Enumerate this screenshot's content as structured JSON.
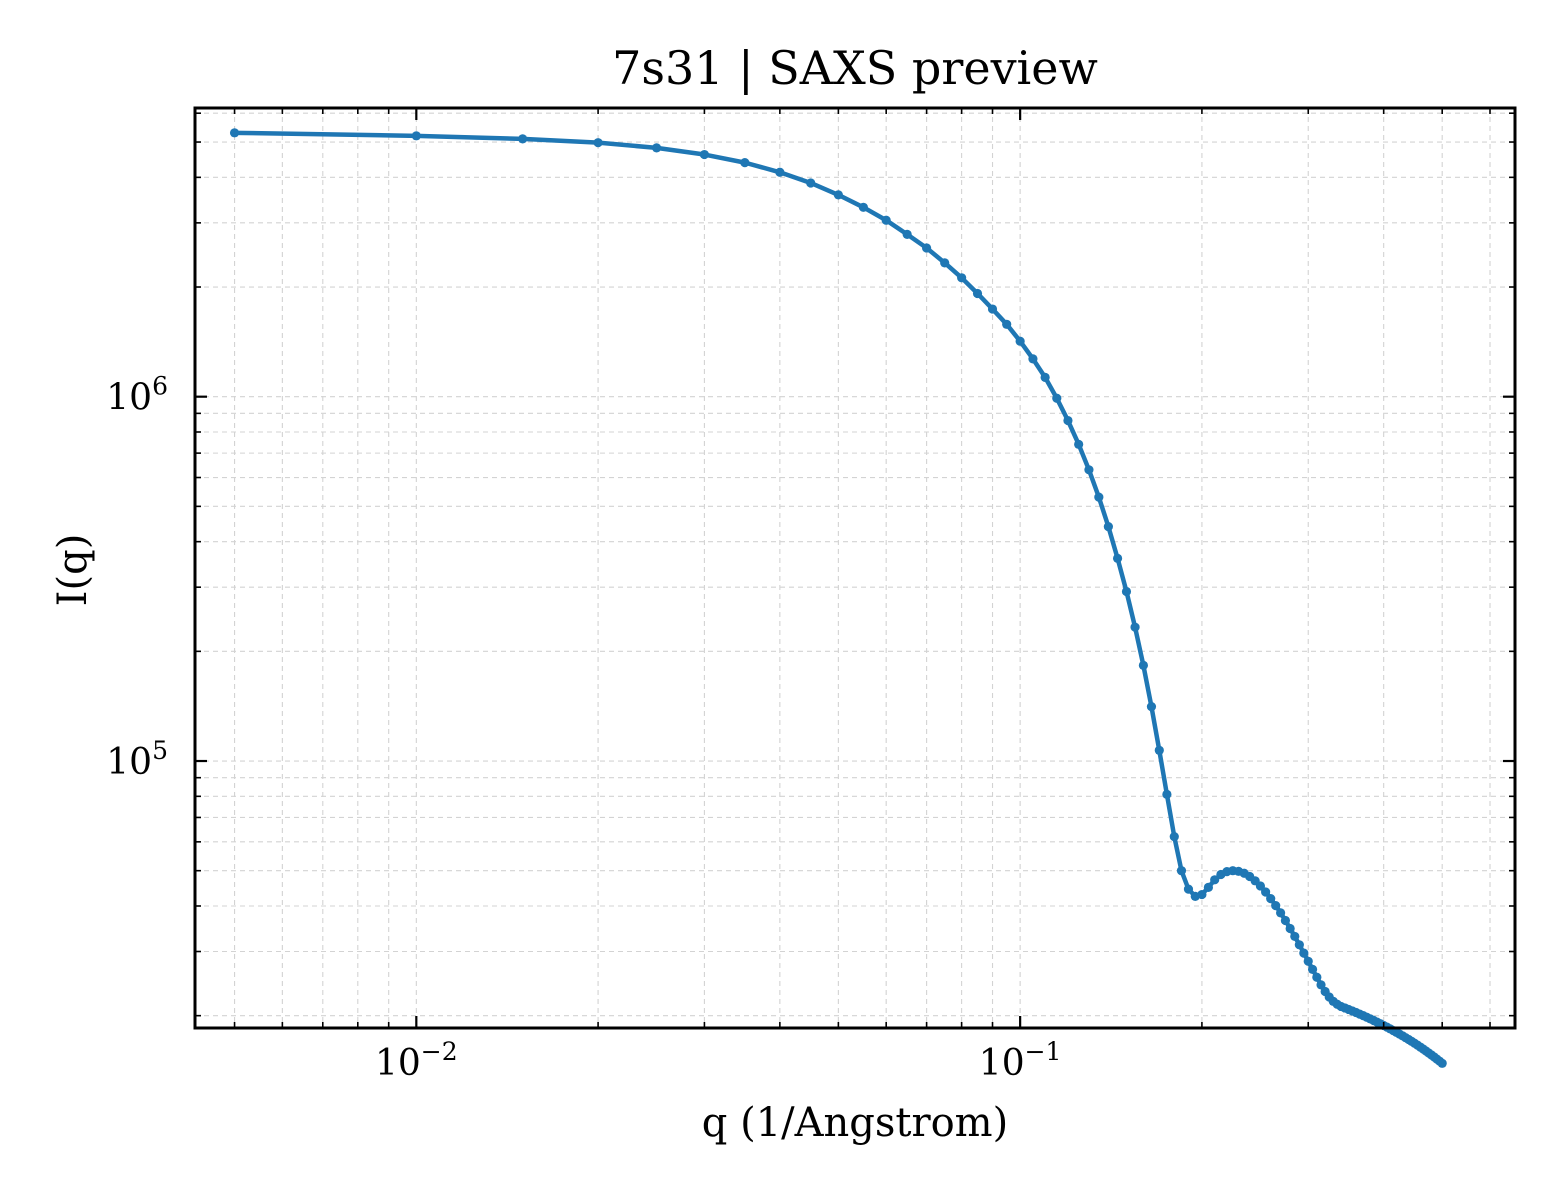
{
  "chart_data": {
    "type": "line",
    "title": "7s31 | SAXS preview",
    "xlabel": "q (1/Angstrom)",
    "ylabel": "I(q)",
    "xscale": "log",
    "yscale": "log",
    "xlim": [
      0.0043,
      0.66
    ],
    "ylim": [
      18500,
      6200000
    ],
    "grid": true,
    "legend": "none",
    "x_ticks": [
      {
        "value": 0.01,
        "base": "10",
        "exp": "−2"
      },
      {
        "value": 0.1,
        "base": "10",
        "exp": "−1"
      }
    ],
    "y_ticks": [
      {
        "value": 100000,
        "base": "10",
        "exp": "5"
      },
      {
        "value": 1000000,
        "base": "10",
        "exp": "6"
      }
    ],
    "series": [
      {
        "color": "#1f77b4",
        "marker": "circle",
        "x": [
          0.005,
          0.01,
          0.015,
          0.02,
          0.025,
          0.03,
          0.035,
          0.04,
          0.045,
          0.05,
          0.055,
          0.06,
          0.065,
          0.07,
          0.075,
          0.08,
          0.085,
          0.09,
          0.095,
          0.1,
          0.105,
          0.11,
          0.115,
          0.12,
          0.125,
          0.13,
          0.135,
          0.14,
          0.145,
          0.15,
          0.155,
          0.16,
          0.165,
          0.17,
          0.175,
          0.18,
          0.185,
          0.19,
          0.195,
          0.2,
          0.205,
          0.21,
          0.215,
          0.22,
          0.225,
          0.23,
          0.235,
          0.24,
          0.245,
          0.25,
          0.255,
          0.26,
          0.265,
          0.27,
          0.275,
          0.28,
          0.285,
          0.29,
          0.295,
          0.3,
          0.305,
          0.31,
          0.315,
          0.32,
          0.325,
          0.33,
          0.335,
          0.34,
          0.345,
          0.35,
          0.355,
          0.36,
          0.365,
          0.37,
          0.375,
          0.38,
          0.385,
          0.39,
          0.395,
          0.4,
          0.405,
          0.41,
          0.415,
          0.42,
          0.425,
          0.43,
          0.435,
          0.44,
          0.445,
          0.45,
          0.455,
          0.46,
          0.465,
          0.47,
          0.475,
          0.48,
          0.485,
          0.49,
          0.495,
          0.5
        ],
        "y": [
          5300000,
          5200000,
          5100000,
          4980000,
          4820000,
          4620000,
          4390000,
          4130000,
          3860000,
          3580000,
          3310000,
          3050000,
          2790000,
          2560000,
          2330000,
          2120000,
          1920000,
          1740000,
          1580000,
          1420000,
          1270000,
          1130000,
          990000,
          860000,
          740000,
          630000,
          530000,
          440000,
          360000,
          292000,
          233000,
          183000,
          141000,
          107000,
          81000,
          62000,
          50000,
          44500,
          42500,
          43000,
          45000,
          47200,
          48800,
          49700,
          50000,
          49800,
          49200,
          48200,
          46900,
          45400,
          43700,
          41900,
          40100,
          38300,
          36500,
          34700,
          33000,
          31300,
          29700,
          28200,
          26800,
          25500,
          24300,
          23300,
          22500,
          21900,
          21500,
          21200,
          21000,
          20800,
          20600,
          20400,
          20200,
          20000,
          19800,
          19600,
          19400,
          19200,
          19000,
          18800,
          18600,
          18400,
          18200,
          18000,
          17800,
          17600,
          17400,
          17200,
          17000,
          16800,
          16600,
          16400,
          16200,
          16000,
          15800,
          15600,
          15400,
          15200,
          15000,
          14800
        ]
      }
    ]
  }
}
